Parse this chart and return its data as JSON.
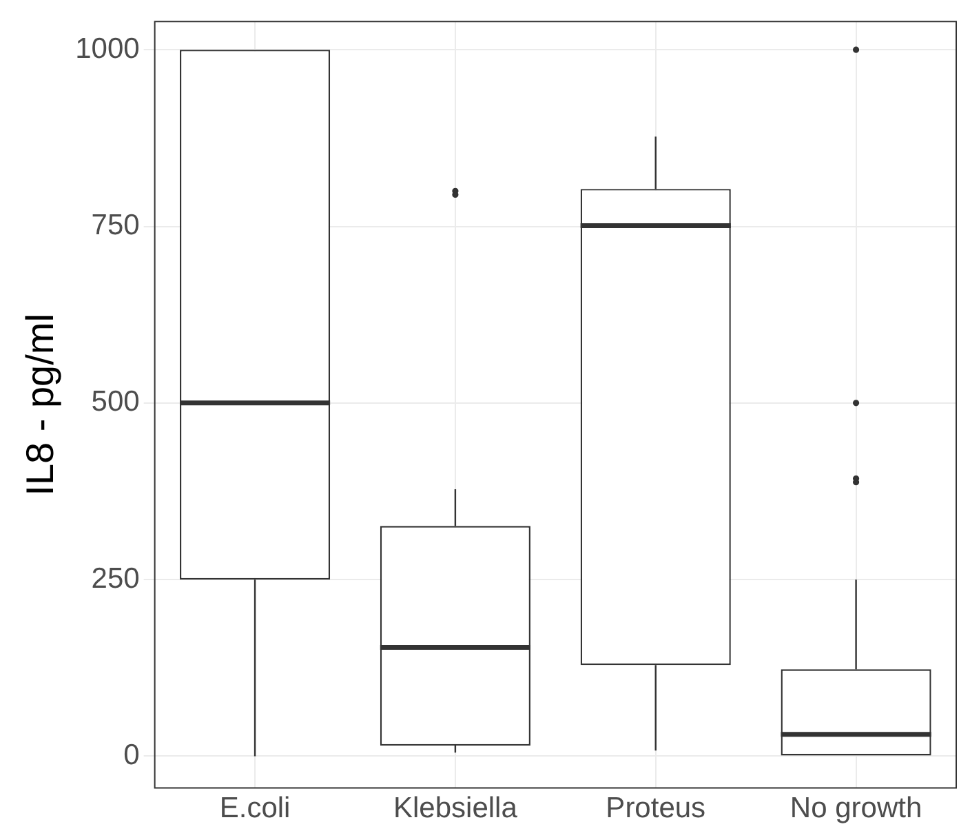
{
  "chart_data": {
    "type": "box",
    "ylabel": "IL8 - pg/ml",
    "categories": [
      "E.coli",
      "Klebsiella",
      "Proteus",
      "No growth"
    ],
    "boxes": [
      {
        "low": 0,
        "q1": 250,
        "median": 500,
        "q3": 1000,
        "high": 1000
      },
      {
        "low": 5,
        "q1": 15,
        "median": 154,
        "q3": 326,
        "high": 378,
        "outliers": [
          795,
          800
        ]
      },
      {
        "low": 8,
        "q1": 129,
        "median": 751,
        "q3": 803,
        "high": 877
      },
      {
        "low": 0,
        "q1": 0,
        "median": 31,
        "q3": 123,
        "high": 250,
        "outliers": [
          388,
          393,
          500,
          1000
        ]
      }
    ],
    "ylim": [
      -45,
      1040
    ],
    "yticks": [
      0,
      250,
      500,
      750,
      1000
    ],
    "grid": true,
    "legend": false
  }
}
